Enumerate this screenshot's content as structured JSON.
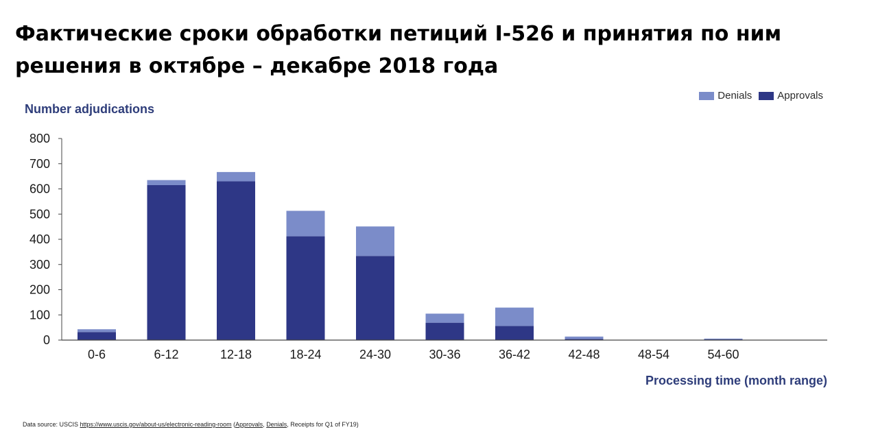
{
  "title": "Фактические сроки обработки петиций I-526 и принятия по ним решения в октябре – декабре 2018 года",
  "source": {
    "prefix": "Data source: USCIS ",
    "link": "https://www.uscis.gov/about-us/electronic-reading-room",
    "suffix_open": " (",
    "approvals_link": "Approvals",
    "sep": ", ",
    "denials_link": "Denials",
    "suffix": ", Receipts for Q1 of FY19)"
  },
  "colors": {
    "approvals": "#2e3786",
    "denials": "#7b8cc9",
    "axis": "#444444",
    "label": "#2e3d7a"
  },
  "chart_data": {
    "type": "bar",
    "stacked": true,
    "categories": [
      "0-6",
      "6-12",
      "12-18",
      "18-24",
      "24-30",
      "30-36",
      "36-42",
      "42-48",
      "48-54",
      "54-60"
    ],
    "series": [
      {
        "name": "Approvals",
        "values": [
          32,
          615,
          630,
          412,
          334,
          69,
          56,
          4,
          0,
          3
        ]
      },
      {
        "name": "Denials",
        "values": [
          11,
          20,
          37,
          101,
          117,
          36,
          73,
          10,
          0,
          3
        ]
      }
    ],
    "legend": [
      "Denials",
      "Approvals"
    ],
    "legend_position": "top-right",
    "xlabel": "Processing time (month range)",
    "ylabel": "Number adjudications",
    "ylim": [
      0,
      800
    ],
    "yticks": [
      0,
      100,
      200,
      300,
      400,
      500,
      600,
      700,
      800
    ],
    "grid": false
  }
}
